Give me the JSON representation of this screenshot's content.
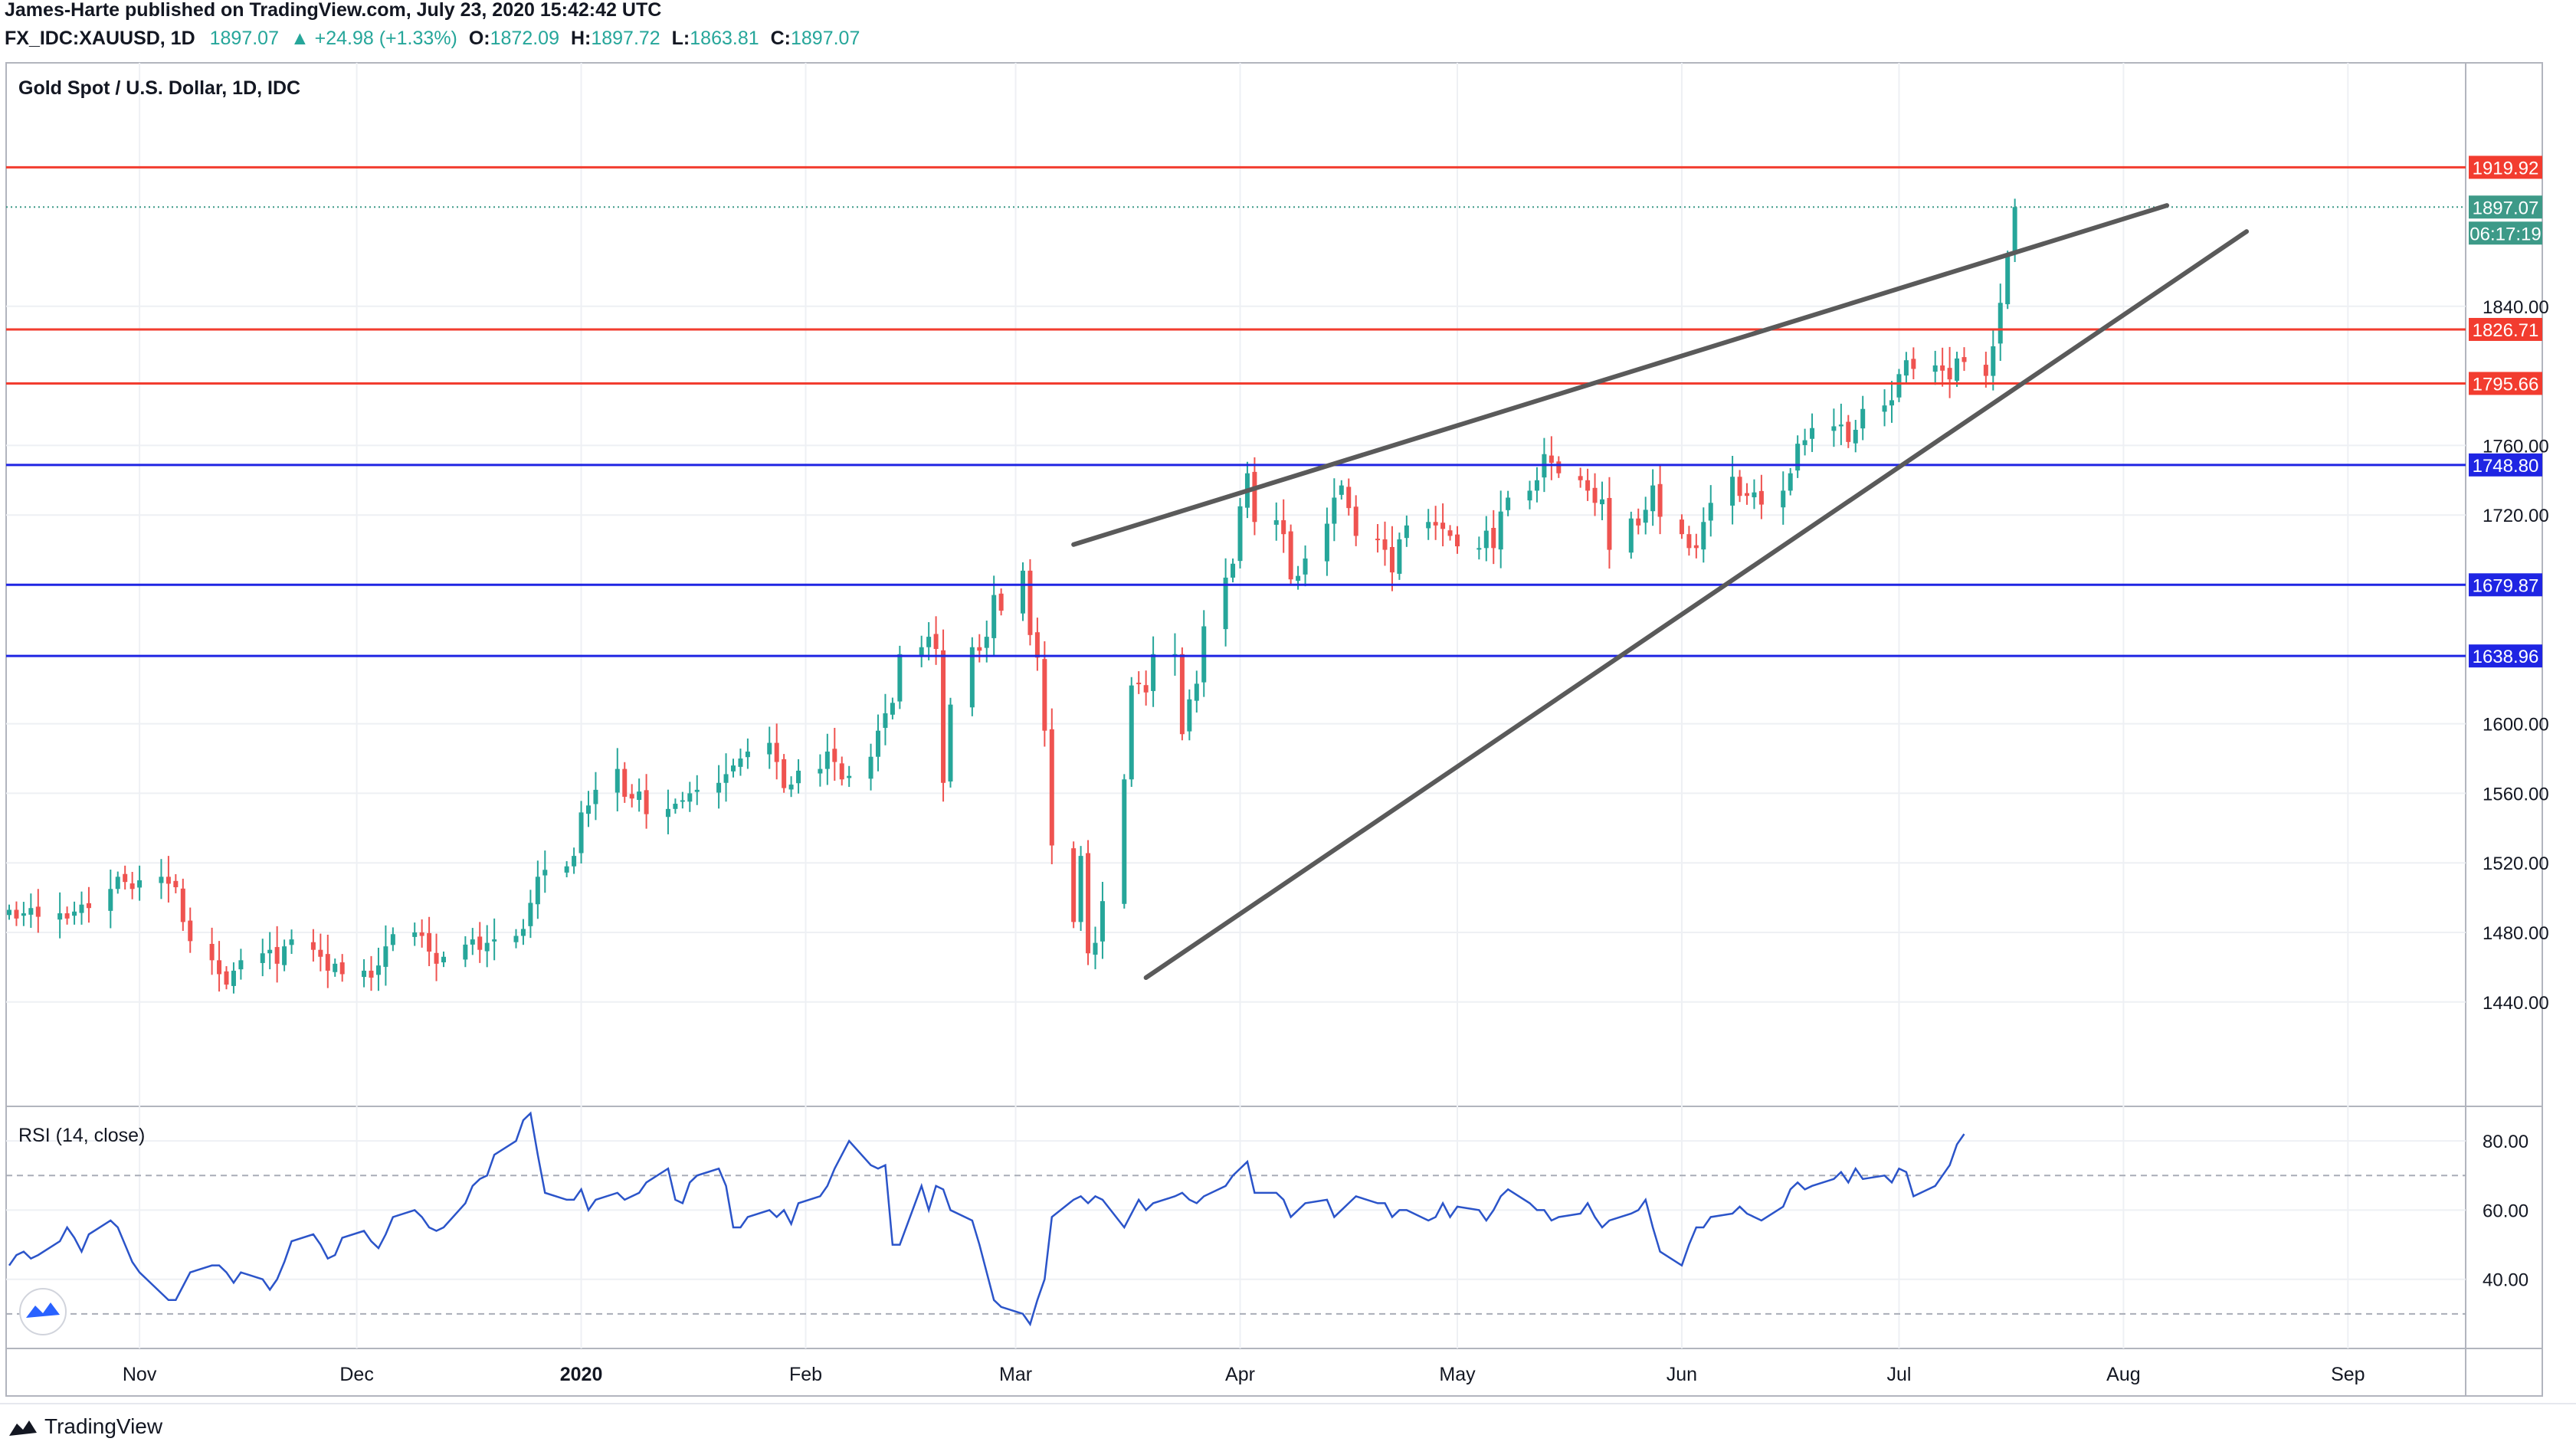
{
  "header": {
    "publisher_line": "James-Harte published on TradingView.com, July 23, 2020 15:42:42 UTC",
    "symbol": "FX_IDC:XAUUSD, 1D",
    "last": "1897.07",
    "change": "▲ +24.98 (+1.33%)",
    "o_label": "O:",
    "o_value": "1872.09",
    "h_label": "H:",
    "h_value": "1897.72",
    "l_label": "L:",
    "l_value": "1863.81",
    "c_label": "C:",
    "c_value": "1897.07"
  },
  "footer": {
    "brand": "TradingView"
  },
  "colors": {
    "up": "#26a69a",
    "down": "#ef5350",
    "red_level": "#f23c2f",
    "blue_level": "#1f25e3",
    "trendline": "#5a5a5a",
    "rsi": "#2b54c9",
    "last_price_tag": "#3d9a88"
  },
  "chart_data": [
    {
      "type": "candlestick",
      "title": "Gold Spot / U.S. Dollar, 1D, IDC",
      "ylim": [
        1400,
        1950
      ],
      "y_ticks": [
        "1840.00",
        "1760.00",
        "1720.00",
        "1600.00",
        "1560.00",
        "1520.00",
        "1480.00",
        "1440.00"
      ],
      "x_ticks": [
        "Nov",
        "Dec",
        "2020",
        "Feb",
        "Mar",
        "Apr",
        "May",
        "Jun",
        "Jul",
        "Aug",
        "Sep"
      ],
      "start_date": "2019-10-14",
      "last": {
        "date": "2020-07-23",
        "close": 1897.07
      },
      "close_series": [
        1493,
        1488,
        1491,
        1494,
        1489,
        1491,
        1488,
        1492,
        1496,
        1494,
        1505,
        1512,
        1509,
        1505,
        1510,
        1512,
        1508,
        1506,
        1486,
        1475,
        1464,
        1456,
        1450,
        1458,
        1464,
        1468,
        1470,
        1462,
        1472,
        1476,
        1470,
        1466,
        1458,
        1462,
        1456,
        1458,
        1454,
        1461,
        1472,
        1479,
        1480,
        1478,
        1469,
        1462,
        1466,
        1473,
        1476,
        1470,
        1474,
        1476,
        1478,
        1482,
        1497,
        1512,
        1516,
        1518,
        1524,
        1549,
        1553,
        1562,
        1574,
        1558,
        1557,
        1561,
        1548,
        1551,
        1554,
        1556,
        1560,
        1562,
        1566,
        1571,
        1576,
        1580,
        1584,
        1589,
        1578,
        1563,
        1565,
        1573,
        1574,
        1584,
        1578,
        1568,
        1570,
        1581,
        1596,
        1606,
        1612,
        1640,
        1644,
        1650,
        1643,
        1566,
        1611,
        1644,
        1642,
        1650,
        1674,
        1665,
        1688,
        1651,
        1638,
        1596,
        1530,
        1486,
        1524,
        1468,
        1474,
        1498,
        1568,
        1622,
        1623,
        1618,
        1640,
        1640,
        1594,
        1614,
        1623,
        1656,
        1684,
        1692,
        1725,
        1744,
        1716,
        1717,
        1709,
        1683,
        1685,
        1695,
        1715,
        1730,
        1737,
        1724,
        1708,
        1706,
        1700,
        1687,
        1706,
        1714,
        1716,
        1714,
        1712,
        1708,
        1702,
        1701,
        1711,
        1701,
        1722,
        1730,
        1734,
        1740,
        1755,
        1750,
        1744,
        1740,
        1734,
        1727,
        1729,
        1700,
        1718,
        1714,
        1723,
        1737,
        1719,
        1709,
        1701,
        1701,
        1716,
        1727,
        1742,
        1731,
        1731,
        1733,
        1726,
        1734,
        1744,
        1761,
        1763,
        1770,
        1771,
        1772,
        1762,
        1769,
        1781,
        1783,
        1786,
        1801,
        1809,
        1804,
        1806,
        1803,
        1798,
        1810,
        1808,
        1800,
        1817,
        1842,
        1869,
        1897.07
      ],
      "hlines": [
        {
          "value": 1919.92,
          "label": "1919.92",
          "color": "red"
        },
        {
          "value": 1826.71,
          "label": "1826.71",
          "color": "red"
        },
        {
          "value": 1795.66,
          "label": "1795.66",
          "color": "red"
        },
        {
          "value": 1748.8,
          "label": "1748.80",
          "color": "blue"
        },
        {
          "value": 1679.87,
          "label": "1679.87",
          "color": "blue"
        },
        {
          "value": 1638.96,
          "label": "1638.96",
          "color": "blue"
        }
      ],
      "last_price_label": "1897.07",
      "countdown_label": "06:17:19",
      "trendlines": [
        {
          "from": {
            "date": "2020-03-09",
            "price": 1703
          },
          "to": {
            "date": "2020-08-07",
            "price": 1898
          }
        },
        {
          "from": {
            "date": "2020-03-19",
            "price": 1454
          },
          "to": {
            "date": "2020-08-18",
            "price": 1883
          }
        }
      ]
    },
    {
      "type": "line",
      "title": "RSI (14, close)",
      "ylim": [
        20,
        90
      ],
      "y_ticks": [
        "80.00",
        "60.00",
        "40.00"
      ],
      "bands": [
        70,
        30
      ],
      "values": [
        44,
        47,
        48,
        46,
        47,
        51,
        55,
        52,
        48,
        53,
        57,
        55,
        50,
        45,
        42,
        36,
        34,
        34,
        38,
        42,
        44,
        44,
        42,
        39,
        42,
        40,
        37,
        40,
        45,
        51,
        53,
        50,
        46,
        47,
        52,
        54,
        51,
        49,
        53,
        58,
        60,
        58,
        55,
        54,
        55,
        62,
        67,
        69,
        70,
        76,
        80,
        86,
        88,
        76,
        65,
        63,
        63,
        66,
        60,
        63,
        65,
        63,
        64,
        65,
        68,
        72,
        63,
        62,
        68,
        70,
        72,
        67,
        55,
        55,
        58,
        60,
        58,
        60,
        56,
        62,
        64,
        67,
        72,
        76,
        80,
        73,
        72,
        73,
        50,
        50,
        67,
        60,
        67,
        66,
        60,
        57,
        50,
        42,
        34,
        32,
        30,
        27,
        34,
        40,
        58,
        63,
        64,
        62,
        64,
        63,
        55,
        59,
        63,
        60,
        62,
        64,
        65,
        63,
        62,
        64,
        67,
        70,
        72,
        74,
        65,
        65,
        63,
        58,
        60,
        62,
        63,
        58,
        60,
        62,
        64,
        62,
        62,
        58,
        60,
        60,
        57,
        58,
        62,
        58,
        61,
        60,
        57,
        60,
        64,
        66,
        62,
        60,
        60,
        57,
        58,
        59,
        62,
        58,
        55,
        57,
        59,
        60,
        63,
        55,
        48,
        44,
        50,
        55,
        55,
        58,
        59,
        61,
        59,
        58,
        57,
        61,
        66,
        68,
        66,
        67,
        69,
        71,
        68,
        72,
        69,
        70,
        68,
        72,
        71,
        64,
        67,
        70,
        73,
        79,
        82
      ]
    }
  ]
}
